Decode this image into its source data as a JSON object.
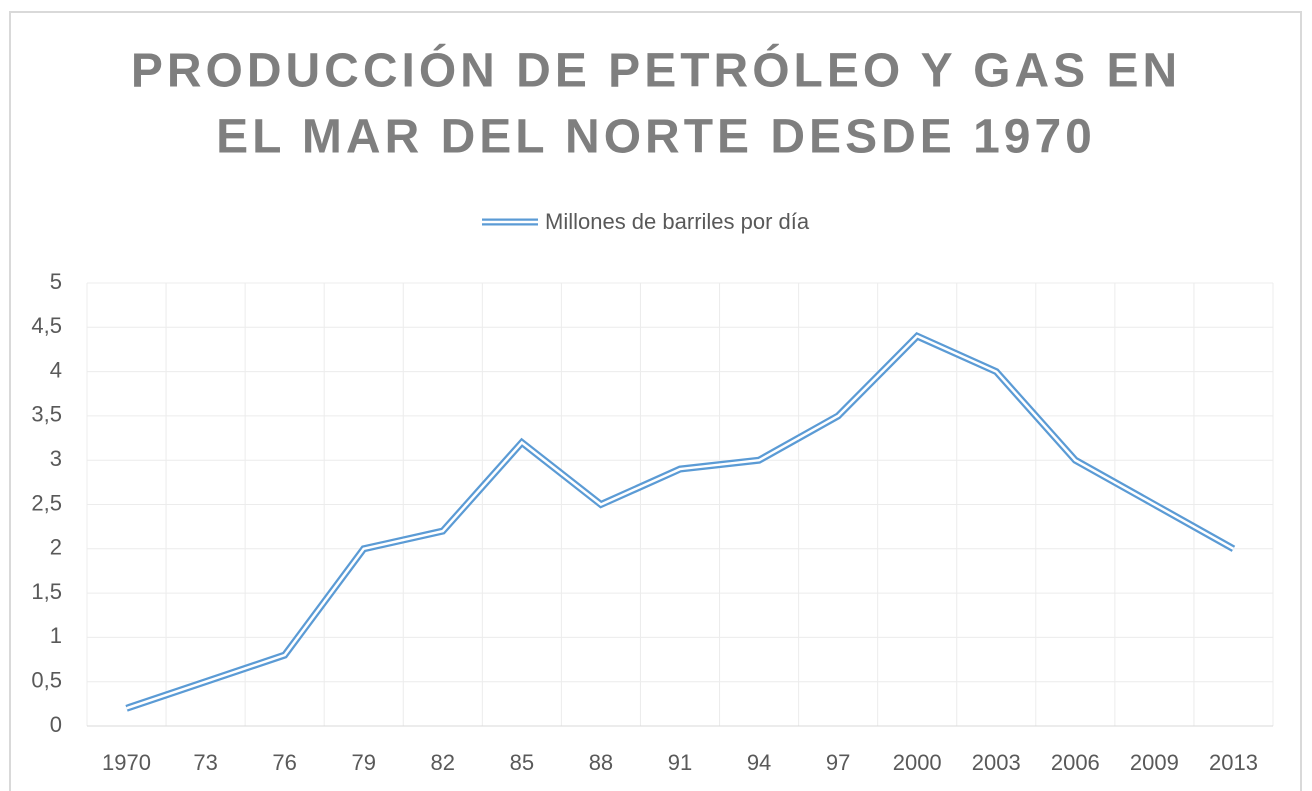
{
  "chart_data": {
    "type": "line",
    "title": [
      "PRODUCCIÓN DE PETRÓLEO Y GAS EN",
      "EL MAR DEL NORTE DESDE 1970"
    ],
    "categories": [
      "1970",
      "73",
      "76",
      "79",
      "82",
      "85",
      "88",
      "91",
      "94",
      "97",
      "2000",
      "2003",
      "2006",
      "2009",
      "2013"
    ],
    "series": [
      {
        "name": "Millones de barriles por día",
        "color": "#5b9bd5",
        "values": [
          0.2,
          0.5,
          0.8,
          2.0,
          2.2,
          3.2,
          2.5,
          2.9,
          3.0,
          3.5,
          4.4,
          4.0,
          3.0,
          2.5,
          2.0
        ]
      }
    ],
    "ylim": [
      0,
      5
    ],
    "yticks": [
      0,
      {
        "value": 0.5,
        "label": "0,5"
      },
      1,
      {
        "value": 1.5,
        "label": "1,5"
      },
      2,
      {
        "value": 2.5,
        "label": "2,5"
      },
      3,
      {
        "value": 3.5,
        "label": "3,5"
      },
      4,
      {
        "value": 4.5,
        "label": "4,5"
      },
      5
    ],
    "grid": true,
    "legend": "top"
  }
}
